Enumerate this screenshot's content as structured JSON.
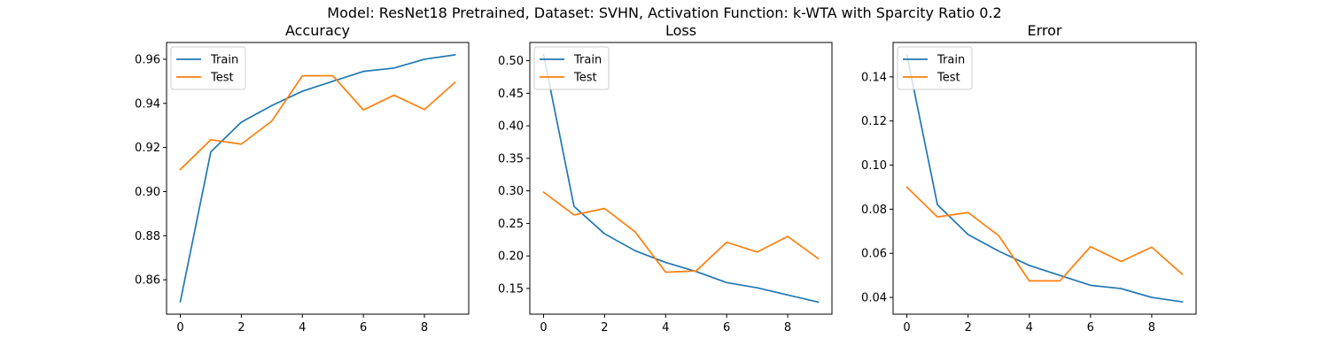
{
  "suptitle": "Model: ResNet18 Pretrained, Dataset: SVHN, Activation Function: k-WTA with Sparcity Ratio 0.2",
  "colors": {
    "train": "#1f77b4",
    "test": "#ff7f0e"
  },
  "chart_data": [
    {
      "type": "line",
      "title": "Accuracy",
      "x": [
        0,
        1,
        2,
        3,
        4,
        5,
        6,
        7,
        8,
        9
      ],
      "xticks": [
        "0",
        "2",
        "4",
        "6",
        "8"
      ],
      "yticks": [
        "0.86",
        "0.88",
        "0.90",
        "0.92",
        "0.94",
        "0.96"
      ],
      "xlim": [
        -0.45,
        9.45
      ],
      "ylim": [
        0.8444,
        0.9676
      ],
      "legend": "top-left",
      "series": [
        {
          "name": "Train",
          "values": [
            0.85,
            0.918,
            0.9315,
            0.939,
            0.9455,
            0.95,
            0.9545,
            0.956,
            0.96,
            0.962
          ]
        },
        {
          "name": "Test",
          "values": [
            0.91,
            0.9235,
            0.9215,
            0.932,
            0.9525,
            0.9525,
            0.937,
            0.9437,
            0.9372,
            0.9495
          ]
        }
      ]
    },
    {
      "type": "line",
      "title": "Loss",
      "x": [
        0,
        1,
        2,
        3,
        4,
        5,
        6,
        7,
        8,
        9
      ],
      "xticks": [
        "0",
        "2",
        "4",
        "6",
        "8"
      ],
      "yticks": [
        "0.15",
        "0.20",
        "0.25",
        "0.30",
        "0.35",
        "0.40",
        "0.45",
        "0.50"
      ],
      "xlim": [
        -0.45,
        9.45
      ],
      "ylim": [
        0.1105,
        0.528
      ],
      "legend": "top-left",
      "series": [
        {
          "name": "Train",
          "values": [
            0.509,
            0.276,
            0.234,
            0.208,
            0.19,
            0.176,
            0.159,
            0.151,
            0.14,
            0.129
          ]
        },
        {
          "name": "Test",
          "values": [
            0.298,
            0.263,
            0.273,
            0.237,
            0.175,
            0.177,
            0.221,
            0.206,
            0.23,
            0.196
          ]
        }
      ]
    },
    {
      "type": "line",
      "title": "Error",
      "x": [
        0,
        1,
        2,
        3,
        4,
        5,
        6,
        7,
        8,
        9
      ],
      "xticks": [
        "0",
        "2",
        "4",
        "6",
        "8"
      ],
      "yticks": [
        "0.04",
        "0.06",
        "0.08",
        "0.10",
        "0.12",
        "0.14"
      ],
      "xlim": [
        -0.45,
        9.45
      ],
      "ylim": [
        0.0324,
        0.1556
      ],
      "legend": "top-left",
      "series": [
        {
          "name": "Train",
          "values": [
            0.15,
            0.082,
            0.0685,
            0.061,
            0.0545,
            0.05,
            0.0455,
            0.044,
            0.04,
            0.038
          ]
        },
        {
          "name": "Test",
          "values": [
            0.09,
            0.0765,
            0.0785,
            0.068,
            0.0475,
            0.0475,
            0.063,
            0.0563,
            0.0628,
            0.0505
          ]
        }
      ]
    }
  ]
}
